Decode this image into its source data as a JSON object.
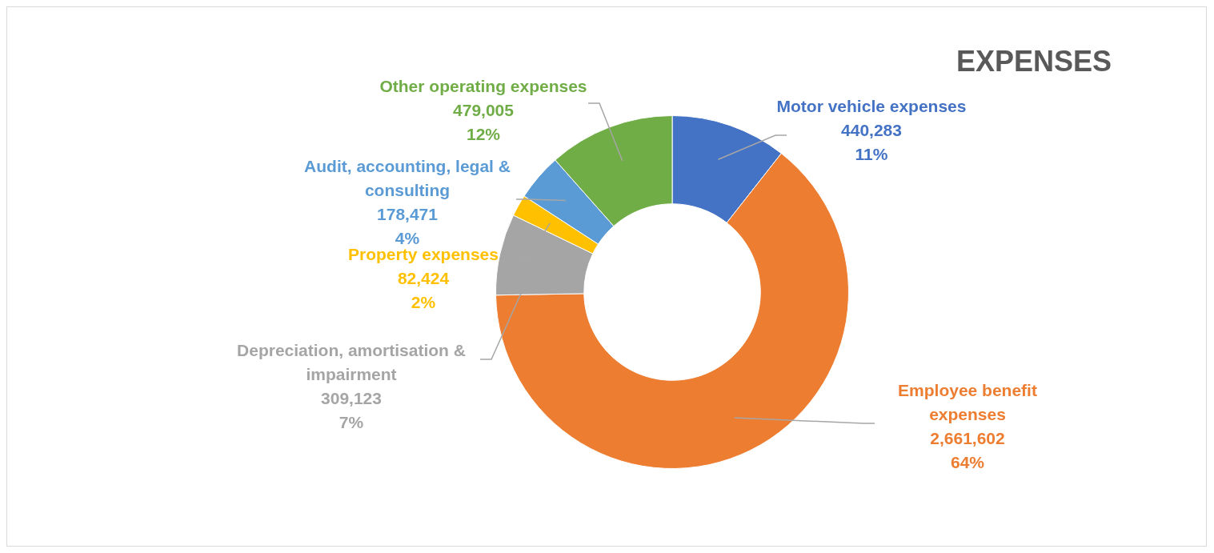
{
  "chart_data": {
    "type": "donut",
    "title": "EXPENSES",
    "categories": [
      "Motor vehicle expenses",
      "Employee benefit expenses",
      "Depreciation, amortisation & impairment",
      "Property expenses",
      "Audit, accounting, legal & consulting",
      "Other operating expenses"
    ],
    "values": [
      440283,
      2661602,
      309123,
      82424,
      178471,
      479005
    ],
    "colors": [
      "#4472c4",
      "#ed7d31",
      "#a5a5a5",
      "#ffc000",
      "#5b9bd5",
      "#70ad47"
    ],
    "value_labels": [
      "440,283\n11%",
      "2,661,602\n64%",
      "309,123\n7%",
      "82,424\n2%",
      "178,471\n4%",
      "479,005\n12%"
    ],
    "legend": false
  }
}
